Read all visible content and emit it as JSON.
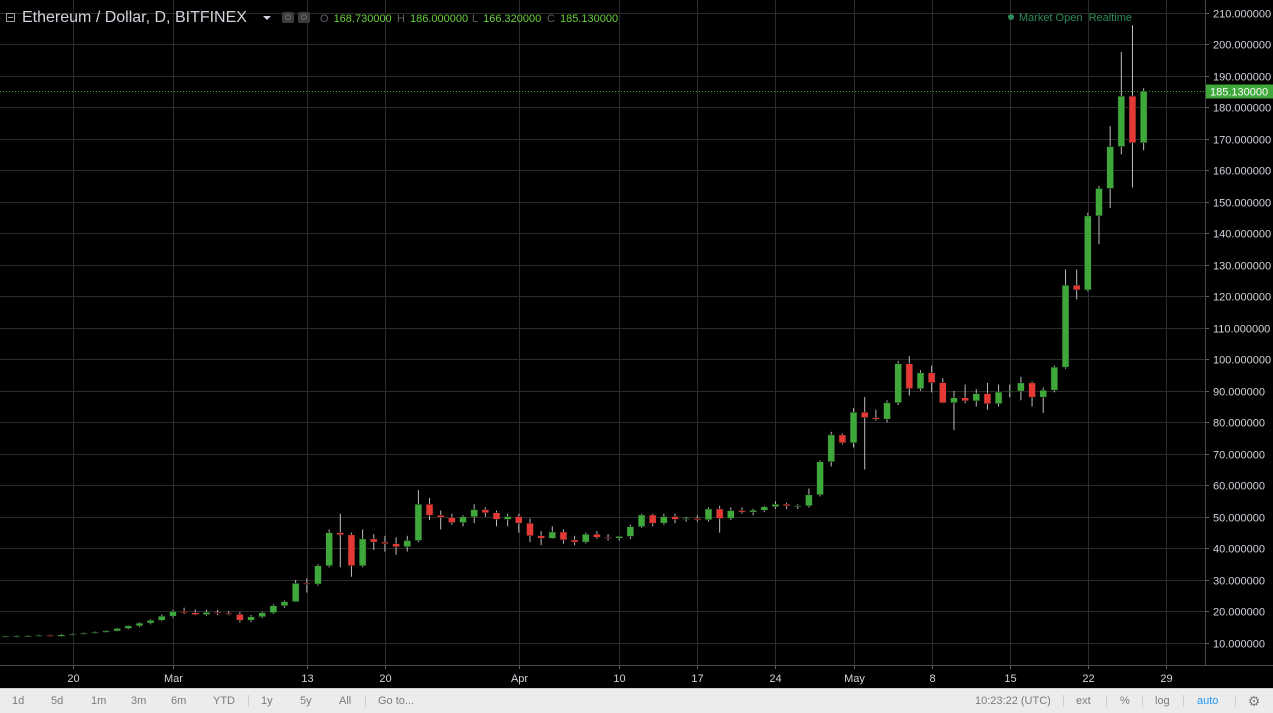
{
  "legend": {
    "symbol": "Ethereum / Dollar, D, BITFINEX",
    "o_label": "O",
    "o_value": "168.730000",
    "h_label": "H",
    "h_value": "186.000000",
    "l_label": "L",
    "l_value": "166.320000",
    "c_label": "C",
    "c_value": "185.130000"
  },
  "status": {
    "text": "Market Open",
    "realtime": "Realtime"
  },
  "toolbar": {
    "ranges": [
      "1d",
      "5d",
      "1m",
      "3m",
      "6m",
      "YTD",
      "1y",
      "5y",
      "All"
    ],
    "goto": "Go to...",
    "time": "10:23:22 (UTC)",
    "ext": "ext",
    "percent": "%",
    "log": "log",
    "auto": "auto"
  },
  "colors": {
    "background": "#000000",
    "grid": "#2b2b2b",
    "up": "#3ea83a",
    "down": "#e53935",
    "text": "#d1d4dc",
    "price_tag": "#3ea83a"
  },
  "icons": [
    "collapse-icon",
    "indicator-icon",
    "settings-icon",
    "caret-down-icon",
    "gear-icon"
  ],
  "chart_data": {
    "type": "candlestick",
    "y_axis": {
      "min": 3,
      "max": 214,
      "ticks": [
        10,
        20,
        30,
        40,
        50,
        60,
        70,
        80,
        90,
        100,
        110,
        120,
        130,
        140,
        150,
        160,
        170,
        180,
        190,
        200,
        210
      ],
      "decimals": 6,
      "position": "right"
    },
    "x_axis": {
      "ticks": [
        {
          "index": 6,
          "label": "20"
        },
        {
          "index": 15,
          "label": "Mar"
        },
        {
          "index": 27,
          "label": "13"
        },
        {
          "index": 34,
          "label": "20"
        },
        {
          "index": 46,
          "label": "Apr"
        },
        {
          "index": 55,
          "label": "10"
        },
        {
          "index": 62,
          "label": "17"
        },
        {
          "index": 69,
          "label": "24"
        },
        {
          "index": 76,
          "label": "May"
        },
        {
          "index": 83,
          "label": "8"
        },
        {
          "index": 90,
          "label": "15"
        },
        {
          "index": 97,
          "label": "22"
        },
        {
          "index": 104,
          "label": "29"
        }
      ],
      "total_slots": 108
    },
    "last_price": 185.13,
    "last_price_label": "185.130000",
    "grid": true,
    "candles": [
      [
        12.0,
        12.3,
        11.8,
        12.1
      ],
      [
        12.1,
        12.4,
        11.9,
        12.2
      ],
      [
        12.2,
        12.5,
        12.0,
        12.3
      ],
      [
        12.3,
        12.6,
        12.0,
        12.4
      ],
      [
        12.4,
        12.6,
        12.0,
        12.1
      ],
      [
        12.1,
        12.9,
        12.0,
        12.6
      ],
      [
        12.6,
        13.0,
        12.4,
        12.8
      ],
      [
        12.8,
        13.3,
        12.6,
        13.1
      ],
      [
        13.1,
        13.6,
        12.9,
        13.4
      ],
      [
        13.4,
        14.0,
        13.2,
        13.8
      ],
      [
        13.8,
        14.8,
        13.6,
        14.6
      ],
      [
        14.6,
        15.6,
        14.3,
        15.4
      ],
      [
        15.4,
        16.6,
        15.0,
        16.3
      ],
      [
        16.3,
        17.5,
        15.9,
        17.2
      ],
      [
        17.2,
        19.0,
        16.9,
        18.5
      ],
      [
        18.5,
        20.5,
        18.0,
        20.0
      ],
      [
        20.0,
        21.2,
        19.2,
        19.6
      ],
      [
        19.6,
        20.6,
        18.8,
        19.0
      ],
      [
        19.0,
        20.5,
        18.6,
        19.7
      ],
      [
        19.7,
        20.5,
        18.8,
        19.4
      ],
      [
        19.4,
        20.1,
        18.8,
        19.1
      ],
      [
        19.1,
        19.8,
        16.5,
        17.2
      ],
      [
        17.2,
        18.9,
        16.6,
        18.3
      ],
      [
        18.3,
        20.0,
        17.9,
        19.6
      ],
      [
        19.6,
        22.3,
        19.2,
        21.8
      ],
      [
        21.8,
        23.5,
        21.2,
        23.1
      ],
      [
        23.1,
        30.0,
        23.0,
        28.9
      ],
      [
        28.9,
        30.5,
        26.0,
        28.7
      ],
      [
        28.7,
        35.0,
        28.2,
        34.5
      ],
      [
        34.5,
        46.0,
        34.0,
        45.0
      ],
      [
        45.0,
        51.0,
        34.0,
        44.3
      ],
      [
        44.3,
        45.0,
        31.0,
        34.5
      ],
      [
        34.5,
        46.0,
        34.0,
        43.0
      ],
      [
        43.0,
        44.5,
        39.5,
        42.0
      ],
      [
        42.0,
        44.0,
        39.0,
        41.5
      ],
      [
        41.5,
        43.5,
        38.0,
        40.5
      ],
      [
        40.5,
        44.0,
        39.0,
        42.5
      ],
      [
        42.5,
        58.5,
        42.0,
        54.0
      ],
      [
        54.0,
        56.0,
        49.0,
        50.5
      ],
      [
        50.5,
        52.0,
        46.0,
        49.8
      ],
      [
        49.8,
        51.0,
        47.5,
        48.2
      ],
      [
        48.2,
        50.5,
        47.0,
        50.0
      ],
      [
        50.0,
        54.0,
        48.0,
        52.3
      ],
      [
        52.3,
        53.0,
        50.0,
        51.3
      ],
      [
        51.3,
        52.0,
        47.0,
        49.2
      ],
      [
        49.2,
        51.0,
        47.0,
        50.1
      ],
      [
        50.1,
        51.0,
        45.0,
        48.0
      ],
      [
        48.0,
        49.5,
        42.0,
        44.0
      ],
      [
        44.0,
        45.5,
        41.0,
        43.2
      ],
      [
        43.2,
        47.0,
        43.0,
        45.2
      ],
      [
        45.2,
        46.0,
        41.5,
        42.7
      ],
      [
        42.7,
        44.0,
        41.0,
        42.0
      ],
      [
        42.0,
        45.0,
        41.5,
        44.5
      ],
      [
        44.5,
        45.5,
        43.0,
        43.5
      ],
      [
        43.5,
        44.5,
        42.5,
        43.2
      ],
      [
        43.2,
        44.0,
        42.5,
        43.8
      ],
      [
        43.8,
        47.5,
        43.0,
        46.9
      ],
      [
        46.9,
        51.0,
        46.5,
        50.6
      ],
      [
        50.6,
        51.0,
        47.0,
        48.0
      ],
      [
        48.0,
        51.0,
        47.5,
        50.1
      ],
      [
        50.1,
        51.0,
        48.0,
        49.2
      ],
      [
        49.2,
        50.0,
        48.5,
        49.5
      ],
      [
        49.5,
        50.5,
        48.5,
        49.1
      ],
      [
        49.1,
        53.0,
        48.5,
        52.5
      ],
      [
        52.5,
        53.5,
        45.0,
        49.5
      ],
      [
        49.5,
        53.0,
        49.0,
        52.0
      ],
      [
        52.0,
        53.0,
        51.0,
        51.5
      ],
      [
        51.5,
        52.5,
        50.5,
        52.1
      ],
      [
        52.1,
        53.5,
        51.5,
        53.2
      ],
      [
        53.2,
        55.0,
        52.5,
        54.0
      ],
      [
        54.0,
        54.5,
        52.5,
        53.5
      ],
      [
        53.5,
        54.0,
        52.5,
        53.5
      ],
      [
        53.5,
        59.0,
        53.0,
        57.0
      ],
      [
        57.0,
        68.0,
        56.5,
        67.5
      ],
      [
        67.5,
        77.0,
        66.0,
        76.0
      ],
      [
        76.0,
        76.5,
        73.0,
        73.5
      ],
      [
        73.5,
        84.5,
        72.0,
        83.2
      ],
      [
        83.2,
        88.0,
        65.0,
        81.5
      ],
      [
        81.5,
        84.0,
        80.5,
        81.0
      ],
      [
        81.0,
        87.0,
        80.0,
        86.2
      ],
      [
        86.2,
        99.5,
        85.5,
        98.6
      ],
      [
        98.6,
        101.0,
        88.5,
        90.7
      ],
      [
        90.7,
        96.5,
        90.0,
        95.7
      ],
      [
        95.7,
        98.0,
        89.5,
        92.6
      ],
      [
        92.6,
        94.0,
        86.0,
        86.2
      ],
      [
        86.2,
        90.0,
        77.5,
        87.8
      ],
      [
        87.8,
        92.0,
        86.0,
        86.8
      ],
      [
        86.8,
        90.5,
        85.0,
        89.1
      ],
      [
        89.1,
        92.5,
        84.0,
        85.9
      ],
      [
        85.9,
        92.0,
        85.0,
        89.6
      ],
      [
        89.6,
        92.0,
        88.0,
        89.9
      ],
      [
        89.9,
        94.5,
        87.0,
        92.5
      ],
      [
        92.5,
        93.0,
        85.0,
        88.0
      ],
      [
        88.0,
        91.0,
        83.0,
        90.2
      ],
      [
        90.2,
        98.0,
        89.5,
        97.5
      ],
      [
        97.5,
        128.5,
        97.0,
        123.5
      ],
      [
        123.5,
        128.5,
        119.0,
        122.0
      ],
      [
        122.0,
        146.5,
        121.5,
        145.5
      ],
      [
        145.5,
        155.0,
        136.5,
        154.2
      ],
      [
        154.2,
        174.0,
        148.0,
        167.5
      ],
      [
        167.5,
        197.5,
        165.0,
        183.5
      ],
      [
        183.5,
        206.0,
        154.5,
        168.7
      ],
      [
        168.7,
        186.0,
        166.3,
        185.1
      ]
    ]
  }
}
